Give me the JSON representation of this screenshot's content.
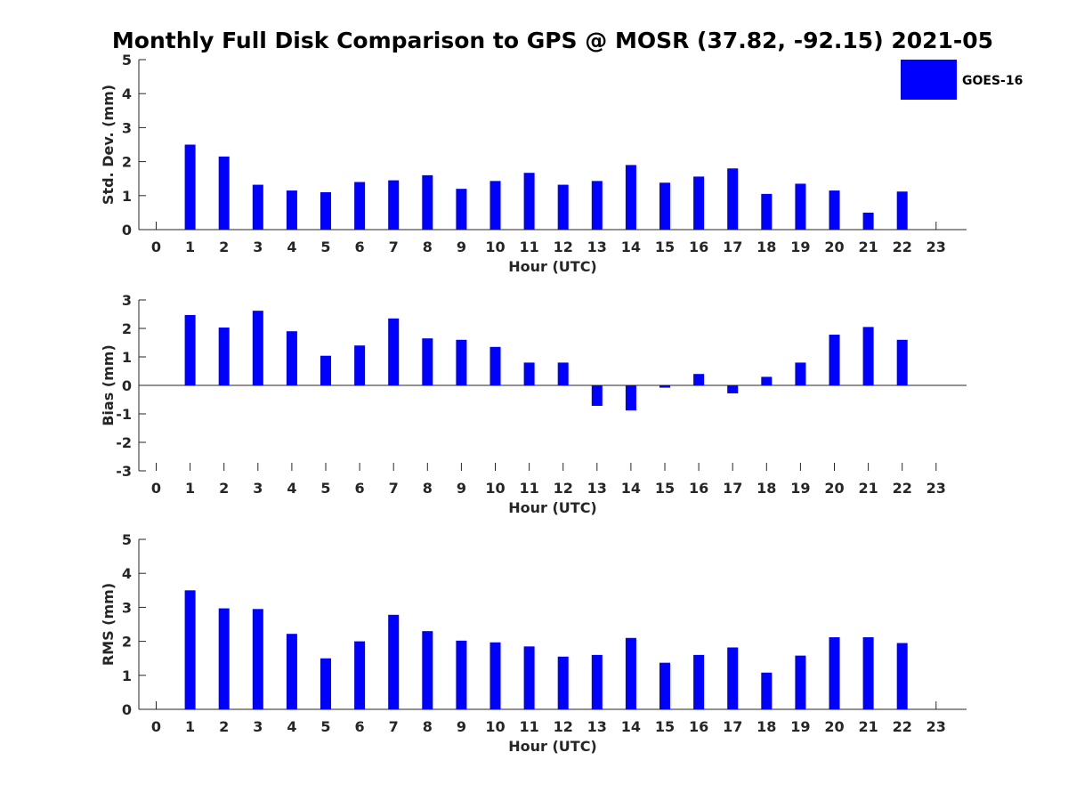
{
  "title": "Monthly Full Disk Comparison to GPS @ MOSR (37.82, -92.15) 2021-05",
  "colors": {
    "bar": "#0000ff",
    "axis": "#262626",
    "background": "#ffffff"
  },
  "legend": {
    "label": "GOES-16",
    "placement": "top-right"
  },
  "chart_data": [
    {
      "type": "bar",
      "title": "",
      "xlabel": "Hour (UTC)",
      "ylabel": "Std. Dev. (mm)",
      "categories": [
        "0",
        "1",
        "2",
        "3",
        "4",
        "5",
        "6",
        "7",
        "8",
        "9",
        "10",
        "11",
        "12",
        "13",
        "14",
        "15",
        "16",
        "17",
        "18",
        "19",
        "20",
        "21",
        "22",
        "23"
      ],
      "series": [
        {
          "name": "GOES-16",
          "values": [
            null,
            2.5,
            2.15,
            1.32,
            1.15,
            1.1,
            1.4,
            1.45,
            1.6,
            1.2,
            1.43,
            1.67,
            1.32,
            1.43,
            1.9,
            1.38,
            1.56,
            1.8,
            1.05,
            1.35,
            1.15,
            0.5,
            1.12,
            null
          ]
        }
      ],
      "ylim": [
        0,
        5
      ],
      "yticks": [
        "0",
        "1",
        "2",
        "3",
        "4",
        "5"
      ],
      "grid": false
    },
    {
      "type": "bar",
      "title": "",
      "xlabel": "Hour (UTC)",
      "ylabel": "Bias (mm)",
      "categories": [
        "0",
        "1",
        "2",
        "3",
        "4",
        "5",
        "6",
        "7",
        "8",
        "9",
        "10",
        "11",
        "12",
        "13",
        "14",
        "15",
        "16",
        "17",
        "18",
        "19",
        "20",
        "21",
        "22",
        "23"
      ],
      "series": [
        {
          "name": "GOES-16",
          "values": [
            null,
            2.47,
            2.03,
            2.62,
            1.9,
            1.04,
            1.4,
            2.35,
            1.65,
            1.6,
            1.35,
            0.8,
            0.8,
            -0.72,
            -0.88,
            -0.08,
            0.4,
            -0.28,
            0.3,
            0.8,
            1.78,
            2.05,
            1.6,
            null
          ]
        }
      ],
      "ylim": [
        -3,
        3
      ],
      "yticks": [
        "-3",
        "-2",
        "-1",
        "0",
        "1",
        "2",
        "3"
      ],
      "grid": false
    },
    {
      "type": "bar",
      "title": "",
      "xlabel": "Hour (UTC)",
      "ylabel": "RMS (mm)",
      "categories": [
        "0",
        "1",
        "2",
        "3",
        "4",
        "5",
        "6",
        "7",
        "8",
        "9",
        "10",
        "11",
        "12",
        "13",
        "14",
        "15",
        "16",
        "17",
        "18",
        "19",
        "20",
        "21",
        "22",
        "23"
      ],
      "series": [
        {
          "name": "GOES-16",
          "values": [
            null,
            3.5,
            2.97,
            2.95,
            2.22,
            1.5,
            2.0,
            2.78,
            2.3,
            2.02,
            1.97,
            1.85,
            1.55,
            1.6,
            2.1,
            1.37,
            1.6,
            1.82,
            1.08,
            1.58,
            2.12,
            2.12,
            1.95,
            null
          ]
        }
      ],
      "ylim": [
        0,
        5
      ],
      "yticks": [
        "0",
        "1",
        "2",
        "3",
        "4",
        "5"
      ],
      "grid": false
    }
  ]
}
